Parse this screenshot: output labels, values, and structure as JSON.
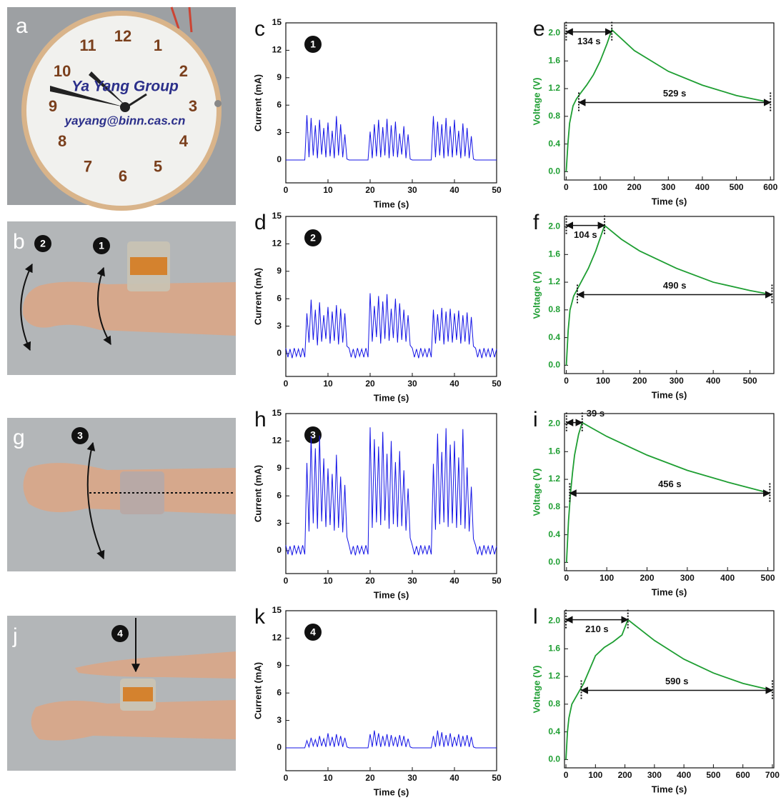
{
  "photos": [
    {
      "letter": "a",
      "clock_numbers": [
        "12",
        "1",
        "2",
        "3",
        "4",
        "5",
        "6",
        "7",
        "8",
        "9",
        "10",
        "11"
      ],
      "clock_texts": [
        "Ya Yang Group",
        "yayang@binn.cas.cn"
      ]
    },
    {
      "letter": "b",
      "markers": [
        "2",
        "1"
      ]
    },
    {
      "letter": "g",
      "markers": [
        "3"
      ]
    },
    {
      "letter": "j",
      "markers": [
        "4"
      ]
    }
  ],
  "chart_data": [
    {
      "type": "line",
      "panel": "c",
      "marker": "1",
      "xlabel": "Time (s)",
      "ylabel": "Current (mA)",
      "color": "#1414e6",
      "xlim": [
        0,
        50
      ],
      "xticks": [
        0,
        10,
        20,
        30,
        40,
        50
      ],
      "ylim": [
        -2.5,
        15
      ],
      "yticks": [
        0,
        3,
        6,
        9,
        12,
        15
      ],
      "x": [
        0,
        0.5,
        1,
        1.5,
        2,
        2.5,
        3,
        3.5,
        4,
        4.5,
        5,
        5.5,
        6,
        6.5,
        7,
        7.5,
        8,
        8.5,
        9,
        9.5,
        10,
        10.5,
        11,
        11.5,
        12,
        12.5,
        13,
        13.5,
        14,
        14.5,
        15,
        15.5,
        16,
        16.5,
        17,
        17.5,
        18,
        18.5,
        19,
        19.5,
        20,
        20.5,
        21,
        21.5,
        22,
        22.5,
        23,
        23.5,
        24,
        24.5,
        25,
        25.5,
        26,
        26.5,
        27,
        27.5,
        28,
        28.5,
        29,
        29.5,
        30,
        30.5,
        31,
        31.5,
        32,
        32.5,
        33,
        33.5,
        34,
        34.5,
        35,
        35.5,
        36,
        36.5,
        37,
        37.5,
        38,
        38.5,
        39,
        39.5,
        40,
        40.5,
        41,
        41.5,
        42,
        42.5,
        43,
        43.5,
        44,
        44.5,
        45,
        45.5,
        46,
        46.5,
        47,
        47.5,
        48,
        48.5,
        49,
        49.5,
        50
      ],
      "values": [
        0,
        0,
        0,
        0,
        0,
        0,
        0,
        0,
        0,
        0,
        4.9,
        0.3,
        4.6,
        0.5,
        3.8,
        0.2,
        4.4,
        0.6,
        3.5,
        0.3,
        4.1,
        0.4,
        3.2,
        0.2,
        4.8,
        0.5,
        3.9,
        0.3,
        2.8,
        0.1,
        0,
        0,
        0,
        0,
        0,
        0,
        0,
        0,
        0,
        0,
        3.1,
        0.2,
        3.9,
        0.4,
        4.4,
        0.3,
        3.6,
        0.5,
        4.5,
        0.2,
        3.8,
        0.4,
        4.2,
        0.3,
        2.9,
        0.6,
        3.7,
        0.2,
        2.8,
        0.1,
        0,
        0,
        0,
        0,
        0,
        0,
        0,
        0,
        0,
        0,
        4.8,
        0.3,
        4.2,
        0.5,
        3.9,
        0.2,
        4.6,
        0.4,
        3.7,
        0.3,
        4.4,
        0.5,
        3.2,
        0.2,
        4.0,
        0.4,
        3.5,
        0.2,
        2.6,
        0.1,
        0,
        0,
        0,
        0,
        0,
        0,
        0,
        0,
        0,
        0,
        0
      ]
    },
    {
      "type": "line",
      "panel": "e",
      "xlabel": "Time (s)",
      "ylabel": "Voltage (V)",
      "color": "#1e9e32",
      "xlim": [
        -5,
        610
      ],
      "xticks": [
        0,
        100,
        200,
        300,
        400,
        500,
        600
      ],
      "ylim": [
        -0.12,
        2.15
      ],
      "yticks": [
        {
          "value": 0,
          "label": "0.0"
        },
        0.4,
        0.8,
        1.2,
        1.6,
        {
          "value": 2,
          "label": "2.0"
        }
      ],
      "x": [
        0,
        5,
        10,
        20,
        30,
        40,
        60,
        80,
        100,
        120,
        134,
        200,
        300,
        400,
        500,
        600
      ],
      "values": [
        0,
        0.4,
        0.7,
        0.95,
        1.05,
        1.12,
        1.25,
        1.4,
        1.6,
        1.85,
        2.05,
        1.75,
        1.45,
        1.25,
        1.1,
        1.0
      ],
      "annotations": [
        {
          "text": "134 s",
          "x1": 0,
          "x2": 134,
          "y": 2.02
        },
        {
          "text": "529 s",
          "x1": 37,
          "x2": 600,
          "y": 1.0
        }
      ]
    },
    {
      "type": "line",
      "panel": "d",
      "marker": "2",
      "xlabel": "Time (s)",
      "ylabel": "Current (mA)",
      "color": "#1414e6",
      "xlim": [
        0,
        50
      ],
      "xticks": [
        0,
        10,
        20,
        30,
        40,
        50
      ],
      "ylim": [
        -2.5,
        15
      ],
      "yticks": [
        0,
        3,
        6,
        9,
        12,
        15
      ],
      "x": [
        0,
        0.5,
        1,
        1.5,
        2,
        2.5,
        3,
        3.5,
        4,
        4.5,
        5,
        5.5,
        6,
        6.5,
        7,
        7.5,
        8,
        8.5,
        9,
        9.5,
        10,
        10.5,
        11,
        11.5,
        12,
        12.5,
        13,
        13.5,
        14,
        14.5,
        15,
        15.5,
        16,
        16.5,
        17,
        17.5,
        18,
        18.5,
        19,
        19.5,
        20,
        20.5,
        21,
        21.5,
        22,
        22.5,
        23,
        23.5,
        24,
        24.5,
        25,
        25.5,
        26,
        26.5,
        27,
        27.5,
        28,
        28.5,
        29,
        29.5,
        30,
        30.5,
        31,
        31.5,
        32,
        32.5,
        33,
        33.5,
        34,
        34.5,
        35,
        35.5,
        36,
        36.5,
        37,
        37.5,
        38,
        38.5,
        39,
        39.5,
        40,
        40.5,
        41,
        41.5,
        42,
        42.5,
        43,
        43.5,
        44,
        44.5,
        45,
        45.5,
        46,
        46.5,
        47,
        47.5,
        48,
        48.5,
        49,
        49.5,
        50
      ],
      "values": [
        0.6,
        -0.4,
        0.5,
        -0.5,
        0.6,
        -0.3,
        0.5,
        -0.4,
        0.6,
        -0.4,
        4.4,
        1.2,
        5.9,
        1.5,
        4.8,
        0.9,
        5.6,
        1.3,
        4.2,
        1.6,
        5.1,
        1.1,
        4.6,
        1.4,
        5.3,
        1.0,
        4.9,
        1.2,
        4.4,
        0.8,
        0.6,
        -0.4,
        0.5,
        -0.5,
        0.6,
        -0.3,
        0.5,
        -0.4,
        0.6,
        -0.4,
        6.6,
        1.3,
        5.2,
        1.8,
        6.3,
        1.1,
        5.7,
        1.6,
        6.5,
        1.4,
        4.9,
        1.7,
        6.0,
        1.2,
        5.5,
        1.5,
        4.8,
        1.3,
        4.2,
        0.9,
        0.6,
        -0.4,
        0.5,
        -0.5,
        0.6,
        -0.3,
        0.5,
        -0.4,
        0.6,
        -0.4,
        4.8,
        1.1,
        4.3,
        1.4,
        5.0,
        1.0,
        4.6,
        1.3,
        4.9,
        1.2,
        4.4,
        1.5,
        4.7,
        1.1,
        4.2,
        1.3,
        4.5,
        1.0,
        4.0,
        0.8,
        0.6,
        -0.4,
        0.5,
        -0.5,
        0.6,
        -0.3,
        0.5,
        -0.4,
        0.6,
        -0.4,
        0.5
      ]
    },
    {
      "type": "line",
      "panel": "f",
      "xlabel": "Time (s)",
      "ylabel": "Voltage (V)",
      "color": "#1e9e32",
      "xlim": [
        -5,
        565
      ],
      "xticks": [
        0,
        100,
        200,
        300,
        400,
        500
      ],
      "ylim": [
        -0.12,
        2.15
      ],
      "yticks": [
        {
          "value": 0,
          "label": "0.0"
        },
        0.4,
        0.8,
        1.2,
        1.6,
        {
          "value": 2,
          "label": "2.0"
        }
      ],
      "x": [
        0,
        5,
        10,
        20,
        30,
        40,
        60,
        80,
        104,
        150,
        200,
        300,
        400,
        500,
        560
      ],
      "values": [
        0,
        0.5,
        0.8,
        1.0,
        1.1,
        1.2,
        1.4,
        1.65,
        2.02,
        1.82,
        1.65,
        1.4,
        1.2,
        1.08,
        1.02
      ],
      "annotations": [
        {
          "text": "104 s",
          "x1": 0,
          "x2": 104,
          "y": 2.02
        },
        {
          "text": "490 s",
          "x1": 30,
          "x2": 560,
          "y": 1.02
        }
      ]
    },
    {
      "type": "line",
      "panel": "h",
      "marker": "3",
      "xlabel": "Time (s)",
      "ylabel": "Current (mA)",
      "color": "#1414e6",
      "xlim": [
        0,
        50
      ],
      "xticks": [
        0,
        10,
        20,
        30,
        40,
        50
      ],
      "ylim": [
        -2.5,
        15
      ],
      "yticks": [
        0,
        3,
        6,
        9,
        12,
        15
      ],
      "x": [
        0,
        0.5,
        1,
        1.5,
        2,
        2.5,
        3,
        3.5,
        4,
        4.5,
        5,
        5.5,
        6,
        6.5,
        7,
        7.5,
        8,
        8.5,
        9,
        9.5,
        10,
        10.5,
        11,
        11.5,
        12,
        12.5,
        13,
        13.5,
        14,
        14.5,
        15,
        15.5,
        16,
        16.5,
        17,
        17.5,
        18,
        18.5,
        19,
        19.5,
        20,
        20.5,
        21,
        21.5,
        22,
        22.5,
        23,
        23.5,
        24,
        24.5,
        25,
        25.5,
        26,
        26.5,
        27,
        27.5,
        28,
        28.5,
        29,
        29.5,
        30,
        30.5,
        31,
        31.5,
        32,
        32.5,
        33,
        33.5,
        34,
        34.5,
        35,
        35.5,
        36,
        36.5,
        37,
        37.5,
        38,
        38.5,
        39,
        39.5,
        40,
        40.5,
        41,
        41.5,
        42,
        42.5,
        43,
        43.5,
        44,
        44.5,
        45,
        45.5,
        46,
        46.5,
        47,
        47.5,
        48,
        48.5,
        49,
        49.5,
        50
      ],
      "values": [
        0.6,
        -0.4,
        0.5,
        -0.5,
        0.6,
        -0.3,
        0.5,
        -0.4,
        0.6,
        -0.4,
        9.6,
        2.1,
        12.5,
        3.0,
        11.2,
        2.4,
        12.6,
        3.2,
        10.1,
        2.6,
        9.0,
        2.8,
        8.4,
        2.2,
        10.5,
        2.5,
        8.1,
        2.0,
        7.2,
        1.5,
        0.6,
        -0.4,
        0.5,
        -0.5,
        0.6,
        -0.3,
        0.5,
        -0.4,
        0.6,
        -0.4,
        13.5,
        2.5,
        12.2,
        3.1,
        11.4,
        2.8,
        13.0,
        3.3,
        10.6,
        2.4,
        12.0,
        2.9,
        9.7,
        2.6,
        10.9,
        2.7,
        8.8,
        2.2,
        6.8,
        1.4,
        0.6,
        -0.4,
        0.5,
        -0.5,
        0.6,
        -0.3,
        0.5,
        -0.4,
        0.6,
        -0.4,
        9.5,
        2.3,
        12.8,
        2.9,
        10.8,
        3.1,
        13.4,
        2.6,
        11.6,
        3.0,
        12.0,
        2.5,
        10.2,
        2.8,
        13.3,
        2.4,
        9.1,
        2.1,
        7.0,
        1.3,
        0.6,
        -0.4,
        0.5,
        -0.5,
        0.6,
        -0.3,
        0.5,
        -0.4,
        0.6,
        -0.4,
        0.5
      ]
    },
    {
      "type": "line",
      "panel": "i",
      "xlabel": "Time (s)",
      "ylabel": "Voltage (V)",
      "color": "#1e9e32",
      "xlim": [
        -5,
        515
      ],
      "xticks": [
        0,
        100,
        200,
        300,
        400,
        500
      ],
      "ylim": [
        -0.12,
        2.15
      ],
      "yticks": [
        {
          "value": 0,
          "label": "0.0"
        },
        0.4,
        0.8,
        1.2,
        1.6,
        {
          "value": 2,
          "label": "2.0"
        }
      ],
      "x": [
        0,
        5,
        10,
        15,
        20,
        30,
        39,
        60,
        100,
        200,
        300,
        400,
        505
      ],
      "values": [
        0,
        0.6,
        1.0,
        1.3,
        1.55,
        1.85,
        2.02,
        1.95,
        1.82,
        1.55,
        1.33,
        1.16,
        1.0
      ],
      "annotations": [
        {
          "text": "39 s",
          "x1": 0,
          "x2": 39,
          "y": 2.02
        },
        {
          "text": "456 s",
          "x1": 8,
          "x2": 505,
          "y": 1.0
        }
      ]
    },
    {
      "type": "line",
      "panel": "k",
      "marker": "4",
      "xlabel": "Time (s)",
      "ylabel": "Current (mA)",
      "color": "#1414e6",
      "xlim": [
        0,
        50
      ],
      "xticks": [
        0,
        10,
        20,
        30,
        40,
        50
      ],
      "ylim": [
        -2.5,
        15
      ],
      "yticks": [
        0,
        3,
        6,
        9,
        12,
        15
      ],
      "x": [
        0,
        0.5,
        1,
        1.5,
        2,
        2.5,
        3,
        3.5,
        4,
        4.5,
        5,
        5.5,
        6,
        6.5,
        7,
        7.5,
        8,
        8.5,
        9,
        9.5,
        10,
        10.5,
        11,
        11.5,
        12,
        12.5,
        13,
        13.5,
        14,
        14.5,
        15,
        15.5,
        16,
        16.5,
        17,
        17.5,
        18,
        18.5,
        19,
        19.5,
        20,
        20.5,
        21,
        21.5,
        22,
        22.5,
        23,
        23.5,
        24,
        24.5,
        25,
        25.5,
        26,
        26.5,
        27,
        27.5,
        28,
        28.5,
        29,
        29.5,
        30,
        30.5,
        31,
        31.5,
        32,
        32.5,
        33,
        33.5,
        34,
        34.5,
        35,
        35.5,
        36,
        36.5,
        37,
        37.5,
        38,
        38.5,
        39,
        39.5,
        40,
        40.5,
        41,
        41.5,
        42,
        42.5,
        43,
        43.5,
        44,
        44.5,
        45,
        45.5,
        46,
        46.5,
        47,
        47.5,
        48,
        48.5,
        49,
        49.5,
        50
      ],
      "values": [
        0,
        0,
        0,
        0,
        0,
        0,
        0,
        0,
        0,
        0,
        0.8,
        0.1,
        1.1,
        0.2,
        0.9,
        0.1,
        1.3,
        0.2,
        1.0,
        0.1,
        1.6,
        0.2,
        1.2,
        0.1,
        1.5,
        0.2,
        1.3,
        0.1,
        1.1,
        0.1,
        0,
        0,
        0,
        0,
        0,
        0,
        0,
        0,
        0,
        0,
        1.5,
        0.1,
        1.9,
        0.2,
        1.6,
        0.1,
        1.3,
        0.2,
        1.5,
        0.1,
        1.4,
        0.2,
        1.2,
        0.1,
        1.4,
        0.2,
        1.3,
        0.1,
        1.0,
        0.1,
        0,
        0,
        0,
        0,
        0,
        0,
        0,
        0,
        0,
        0,
        1.3,
        0.1,
        1.9,
        0.2,
        1.7,
        0.1,
        1.4,
        0.2,
        1.6,
        0.1,
        1.2,
        0.2,
        1.5,
        0.1,
        1.3,
        0.2,
        1.4,
        0.1,
        1.2,
        0.1,
        0,
        0,
        0,
        0,
        0,
        0,
        0,
        0,
        0,
        0,
        0
      ]
    },
    {
      "type": "line",
      "panel": "l",
      "xlabel": "Time (s)",
      "ylabel": "Voltage (V)",
      "color": "#1e9e32",
      "xlim": [
        -5,
        705
      ],
      "xticks": [
        0,
        100,
        200,
        300,
        400,
        500,
        600,
        700
      ],
      "ylim": [
        -0.12,
        2.15
      ],
      "yticks": [
        {
          "value": 0,
          "label": "0.0"
        },
        0.4,
        0.8,
        1.2,
        1.6,
        {
          "value": 2,
          "label": "2.0"
        }
      ],
      "x": [
        0,
        5,
        10,
        20,
        40,
        60,
        80,
        100,
        130,
        160,
        190,
        210,
        300,
        400,
        500,
        600,
        700
      ],
      "values": [
        0,
        0.4,
        0.6,
        0.8,
        0.95,
        1.1,
        1.3,
        1.5,
        1.62,
        1.7,
        1.8,
        2.02,
        1.72,
        1.45,
        1.25,
        1.1,
        1.0
      ],
      "annotations": [
        {
          "text": "210 s",
          "x1": 0,
          "x2": 210,
          "y": 2.02
        },
        {
          "text": "590 s",
          "x1": 52,
          "x2": 700,
          "y": 1.0
        }
      ]
    }
  ]
}
